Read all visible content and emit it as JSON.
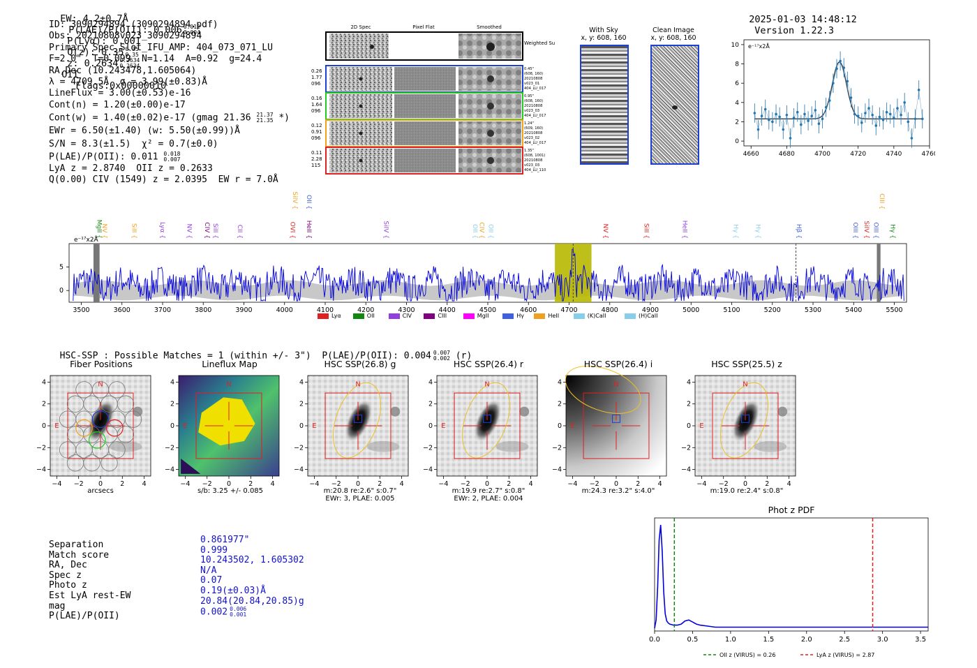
{
  "header": {
    "ew": "EW: 4.2±0.7Å",
    "plae": "P(LAE)/P(OII): 0.006",
    "plae_hi": "0.012",
    "plae_lo": "0.004",
    "plya": "P(Lyα): 0.001",
    "qz": "Q(z): 0.35",
    "qz_hi": "0.35",
    "qz_lo": "0.35",
    "z": "z: 0.2634",
    "z_hi": "0.2634",
    "z_lo": "0.2634",
    "z_line": "OII",
    "flags": "Flags:0x00000010",
    "datetime": "2025-01-03 14:48:12",
    "version": "Version 1.22.3"
  },
  "info": {
    "id": "ID: 3090294894 (3090294894.pdf)",
    "obs": "Obs: 20210808v023_3090294894",
    "primary": "Primary Spec_Slot_IFU_AMP: 404_073_071_LU",
    "fit": "F=2.0\"  T=0.099  N=1.14  A=0.92  g=24.4",
    "radec": "RA,Dec (10.243478,1.605064)",
    "lambda": "λ = 4709.5Å  σ = 3.99(±0.83)Å",
    "lineflux": "LineFlux = 3.00(±0.53)e-16",
    "contn": "Cont(n) = 1.20(±0.00)e-17",
    "contw": "Cont(w) = 1.40(±0.02)e-17 (gmag 21.36",
    "contw_hi": "21.37",
    "contw_lo": "21.35",
    "contw_end": "*)",
    "ewr": "EWr = 6.50(±1.40) (w: 5.50(±0.99))Å",
    "sn": "S/N = 8.3(±1.5)  χ² = 0.7(±0.0)",
    "plae": "P(LAE)/P(OII): 0.011",
    "plae_hi": "0.018",
    "plae_lo": "0.007",
    "lya": "LyA z = 2.8740  OII z = 0.2633",
    "civ": "Q(0.00) CIV (1549) z = 2.0395  EW r = 7.0Å"
  },
  "cutouts": {
    "col_headers": [
      "2D Spec",
      "Pixel Flat",
      "Smoothed"
    ],
    "weighted_sum": "Weighted Sum",
    "rows": [
      {
        "left": [
          "0.26",
          "1.77",
          "096"
        ],
        "right": [
          "0.45\"",
          "(608, 160)",
          "20210808",
          "v023_01",
          "404_LU_017"
        ],
        "color": "#1f3fd0"
      },
      {
        "left": [
          "0.16",
          "1.64",
          "096"
        ],
        "right": [
          "0.95\"",
          "(608, 160)",
          "20210808",
          "v023_03",
          "404_LU_017"
        ],
        "color": "#22cc22"
      },
      {
        "left": [
          "0.12",
          "0.91",
          "096"
        ],
        "right": [
          "1.24\"",
          "(609, 160)",
          "20210808",
          "v023_02",
          "404_LU_017"
        ],
        "color": "#f0a020"
      },
      {
        "left": [
          "0.11",
          "2.28",
          "115"
        ],
        "right": [
          "1.35\"",
          "(608, 1001)",
          "20210808",
          "v023_03",
          "404_LU_110"
        ],
        "color": "#e02020"
      }
    ]
  },
  "sky": {
    "title": "With Sky",
    "coords": "x, y: 608, 160"
  },
  "clean": {
    "title": "Clean Image",
    "coords": "x, y: 608, 160"
  },
  "zoom_chart": {
    "ylabel": "e⁻¹⁷x2Å"
  },
  "spectrum": {
    "ylabel": "e⁻¹⁷x2Å",
    "legend": [
      {
        "name": "Lyα",
        "color": "#e02020"
      },
      {
        "name": "OII",
        "color": "#118811"
      },
      {
        "name": "CIV",
        "color": "#9040e0"
      },
      {
        "name": "CIII",
        "color": "#800080"
      },
      {
        "name": "MgII",
        "color": "#ff00ff"
      },
      {
        "name": "Hγ",
        "color": "#4060e0"
      },
      {
        "name": "HeII",
        "color": "#f0a020"
      },
      {
        "name": "(K)CaII",
        "color": "#87ceeb"
      },
      {
        "name": "(H)CaII",
        "color": "#87ceeb"
      }
    ]
  },
  "hsc": {
    "title": "HSC-SSP : Possible Matches = 1 (within +/- 3\")  P(LAE)/P(OII): 0.004",
    "plae_hi": "0.007",
    "plae_lo": "0.002",
    "band": "(r)",
    "panels": [
      {
        "title": "Fiber Positions",
        "cap1": "arcsecs",
        "cap2": ""
      },
      {
        "title": "Lineflux Map",
        "cap1": "s/b: 3.25 +/- 0.085",
        "cap2": ""
      },
      {
        "title": "HSC SSP(26.8) g",
        "cap1": "m:20.8   re:2.6\"   s:0.7\"",
        "cap2": "EWr: 3, PLAE: 0.005"
      },
      {
        "title": "HSC SSP(26.4) r",
        "cap1": "m:19.9   re:2.7\"   s:0.8\"",
        "cap2": "EWr: 2, PLAE: 0.004"
      },
      {
        "title": "HSC SSP(26.4) i",
        "cap1": "m:24.3   re:3.2\"   s:4.0\"",
        "cap2": ""
      },
      {
        "title": "HSC SSP(25.5) z",
        "cap1": "m:19.0   re:2.4\"   s:0.8\"",
        "cap2": ""
      }
    ],
    "n_label": "N",
    "e_label": "E"
  },
  "match": {
    "labels": [
      "Separation",
      "Match score",
      "RA, Dec",
      "Spec z",
      "Photo z",
      "Est LyA rest-EW",
      "mag",
      "P(LAE)/P(OII)"
    ],
    "values": [
      "0.861977\"",
      "0.999",
      "10.243502, 1.605302",
      "N/A",
      "0.07",
      "0.19(±0.03)Å",
      "20.84(20.84,20.85)g",
      "0.002"
    ],
    "plae_hi": "0.006",
    "plae_lo": "0.001"
  },
  "photz": {
    "title": "Phot z PDF",
    "legend_oii": "OII z (VIRUS) = 0.26",
    "legend_lya": "LyA z (VIRUS) = 2.87",
    "oii_color": "#118811",
    "lya_color": "#e02020"
  },
  "chart_data": [
    {
      "type": "line",
      "name": "zoom_spectrum",
      "ylabel": "e⁻¹⁷x2Å",
      "xlim": [
        4656,
        4760
      ],
      "ylim": [
        -0.5,
        10.5
      ],
      "xticks": [
        4660,
        4680,
        4700,
        4720,
        4740,
        4760
      ],
      "yticks": [
        0,
        2,
        4,
        6,
        8,
        10
      ],
      "x": [
        4662,
        4664,
        4666,
        4668,
        4670,
        4672,
        4674,
        4676,
        4678,
        4680,
        4682,
        4684,
        4686,
        4688,
        4690,
        4692,
        4694,
        4696,
        4698,
        4700,
        4702,
        4704,
        4706,
        4708,
        4710,
        4712,
        4714,
        4716,
        4718,
        4720,
        4722,
        4724,
        4726,
        4728,
        4730,
        4732,
        4734,
        4736,
        4738,
        4740,
        4742,
        4744,
        4746,
        4748,
        4750,
        4752,
        4754,
        4756
      ],
      "y": [
        2.9,
        1.2,
        2.6,
        3.3,
        2.2,
        2.0,
        2.8,
        2.5,
        1.2,
        2.7,
        0.3,
        2.4,
        3.0,
        1.7,
        2.8,
        2.1,
        2.6,
        3.2,
        1.8,
        2.3,
        3.5,
        4.2,
        6.0,
        7.5,
        8.3,
        7.6,
        6.2,
        4.5,
        2.8,
        2.6,
        1.9,
        2.9,
        3.4,
        2.7,
        1.6,
        2.5,
        2.2,
        3.0,
        2.8,
        2.4,
        3.4,
        2.7,
        4.0,
        2.0,
        0.3,
        2.3,
        5.3,
        2.3
      ],
      "fit": {
        "continuum": 2.3,
        "amplitude": 5.9,
        "center": 4709.5,
        "sigma": 3.99
      }
    },
    {
      "type": "line",
      "name": "full_spectrum",
      "xlim": [
        3470,
        5530
      ],
      "ylim": [
        -2.5,
        10
      ],
      "xticks": [
        3500,
        3600,
        3700,
        3800,
        3900,
        4000,
        4100,
        4200,
        4300,
        4400,
        4500,
        4600,
        4700,
        4800,
        4900,
        5000,
        5100,
        5200,
        5300,
        5400,
        5500
      ],
      "yticks": [
        0,
        5
      ],
      "highlight_range": [
        4665,
        4755
      ],
      "marker_x": [
        4710,
        5258
      ],
      "masked_regions": [
        [
          3530,
          3545
        ],
        [
          5457,
          5466
        ]
      ],
      "lines": [
        {
          "name": "MgII",
          "x": 3534,
          "color": "#118811"
        },
        {
          "name": "NV",
          "x": 3547,
          "color": "#f0a020"
        },
        {
          "name": "SiII",
          "x": 3620,
          "color": "#f0a020"
        },
        {
          "name": "Lyα",
          "x": 3690,
          "color": "#9040e0"
        },
        {
          "name": "NV",
          "x": 3756,
          "color": "#9040e0"
        },
        {
          "name": "CIV",
          "x": 3800,
          "color": "#800080"
        },
        {
          "name": "SiII",
          "x": 3820,
          "color": "#9040e0"
        },
        {
          "name": "CII",
          "x": 3880,
          "color": "#9040e0"
        },
        {
          "name": "OVI",
          "x": 4010,
          "color": "#e02020"
        },
        {
          "name": "SiIV",
          "x": 4016,
          "color": "#f0a020"
        },
        {
          "name": "OII",
          "x": 4050,
          "color": "#4060e0"
        },
        {
          "name": "HeII",
          "x": 4050,
          "color": "#800080"
        },
        {
          "name": "SiIV",
          "x": 4240,
          "color": "#9040e0"
        },
        {
          "name": "OII",
          "x": 4459,
          "color": "#87ceeb"
        },
        {
          "name": "CIV",
          "x": 4475,
          "color": "#f0a020"
        },
        {
          "name": "OII",
          "x": 4497,
          "color": "#87ceeb"
        },
        {
          "name": "NV",
          "x": 4780,
          "color": "#e02020"
        },
        {
          "name": "SiII",
          "x": 4880,
          "color": "#e02020"
        },
        {
          "name": "HeII",
          "x": 4975,
          "color": "#9040e0"
        },
        {
          "name": "Hγ",
          "x": 5100,
          "color": "#87ceeb"
        },
        {
          "name": "Hγ",
          "x": 5155,
          "color": "#87ceeb"
        },
        {
          "name": "Hβ",
          "x": 5255,
          "color": "#4060e0"
        },
        {
          "name": "OIII",
          "x": 5394,
          "color": "#4060e0"
        },
        {
          "name": "SiIV",
          "x": 5422,
          "color": "#e02020"
        },
        {
          "name": "OIII",
          "x": 5445,
          "color": "#4060e0"
        },
        {
          "name": "CIII",
          "x": 5460,
          "color": "#f0a020"
        },
        {
          "name": "Hγ",
          "x": 5486,
          "color": "#118811"
        }
      ]
    },
    {
      "type": "line",
      "name": "phot_z_pdf",
      "title": "Phot z PDF",
      "xlim": [
        0,
        3.6
      ],
      "xticks": [
        0.0,
        0.5,
        1.0,
        1.5,
        2.0,
        2.5,
        3.0,
        3.5
      ],
      "x": [
        0.0,
        0.02,
        0.04,
        0.06,
        0.08,
        0.1,
        0.12,
        0.14,
        0.16,
        0.18,
        0.2,
        0.25,
        0.3,
        0.35,
        0.4,
        0.45,
        0.5,
        0.55,
        0.6,
        0.7,
        0.8,
        1.0,
        1.2,
        1.5,
        2.0,
        2.5,
        3.0,
        3.6
      ],
      "y": [
        0.0,
        0.08,
        0.4,
        0.85,
        1.0,
        0.75,
        0.35,
        0.14,
        0.07,
        0.05,
        0.04,
        0.03,
        0.03,
        0.04,
        0.07,
        0.08,
        0.06,
        0.04,
        0.03,
        0.02,
        0.01,
        0.01,
        0.01,
        0.01,
        0.01,
        0.01,
        0.01,
        0.01
      ],
      "vlines": [
        {
          "name": "OII z (VIRUS)",
          "x": 0.26
        },
        {
          "name": "LyA z (VIRUS)",
          "x": 2.87
        }
      ]
    }
  ]
}
